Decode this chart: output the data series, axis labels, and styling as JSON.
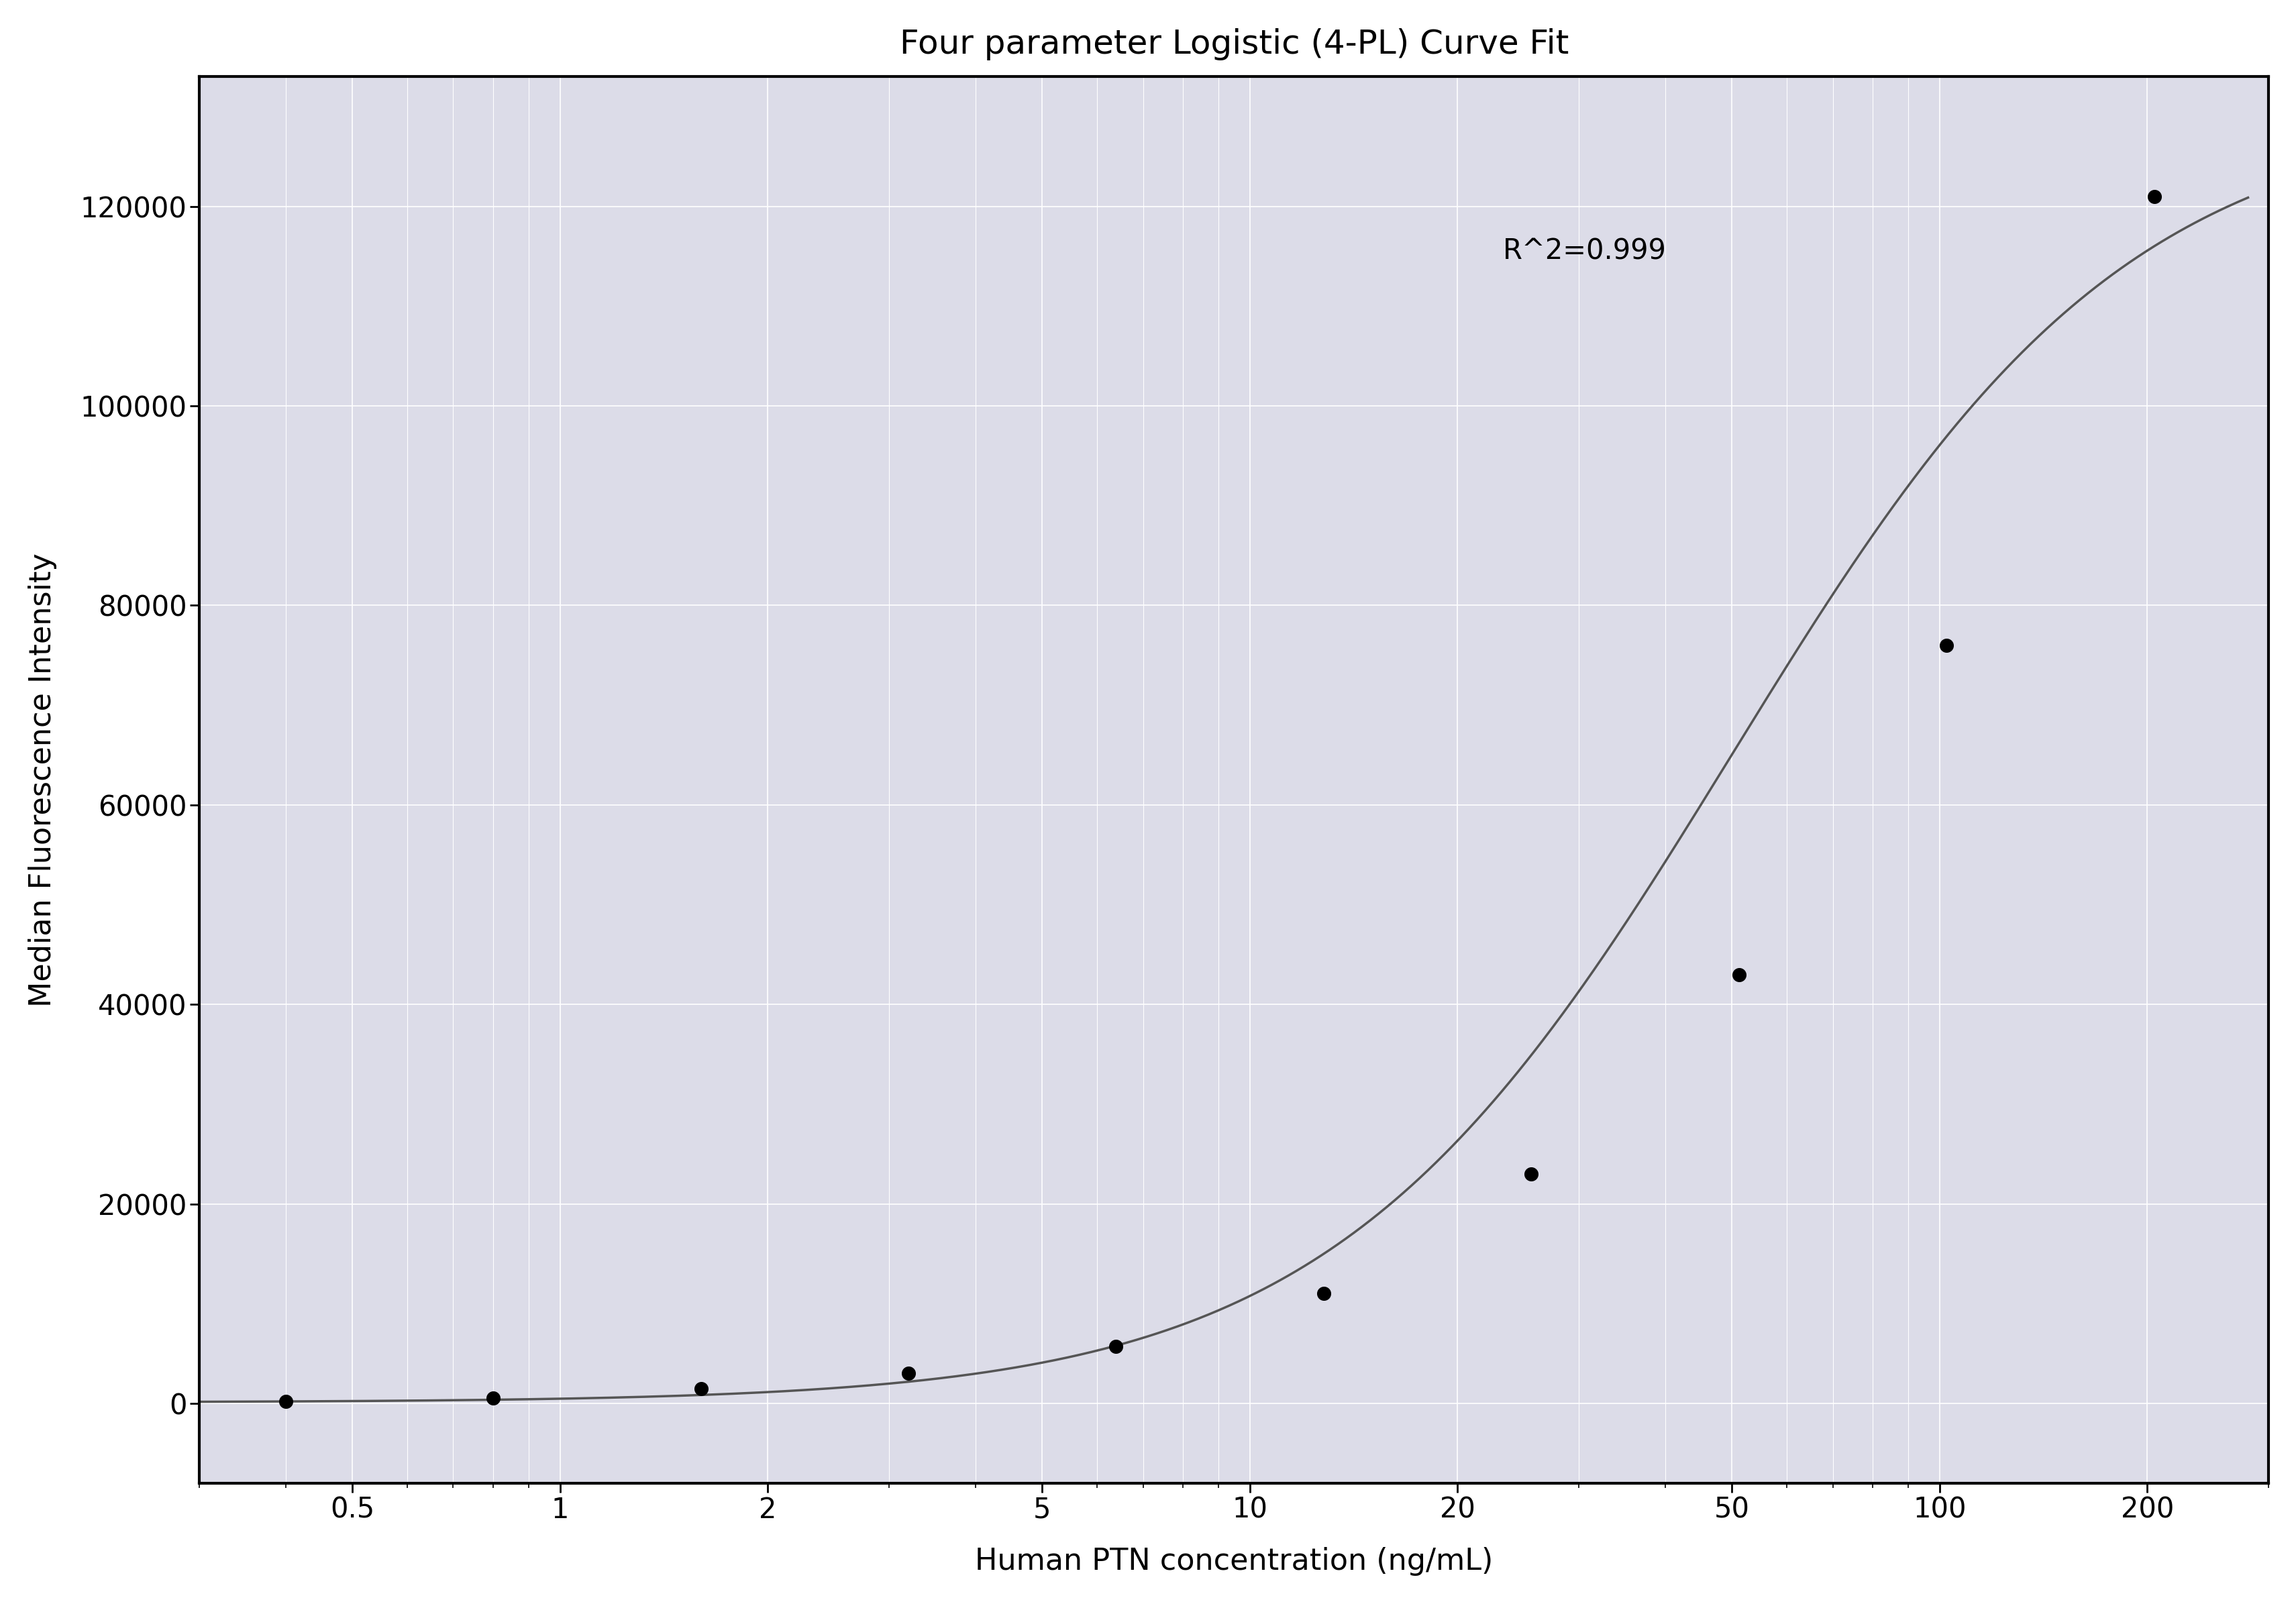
{
  "title": "Four parameter Logistic (4-PL) Curve Fit",
  "xlabel": "Human PTN concentration (ng/mL)",
  "ylabel": "Median Fluorescence Intensity",
  "r_squared_text": "R^2=0.999",
  "data_x": [
    0.4,
    0.8,
    1.6,
    3.2,
    6.4,
    12.8,
    25.6,
    51.2,
    102.4,
    204.8
  ],
  "data_y": [
    200,
    500,
    1500,
    3000,
    5700,
    11000,
    23000,
    43000,
    76000,
    121000
  ],
  "xscale": "log",
  "xticks": [
    0.5,
    1,
    2,
    5,
    10,
    20,
    50,
    100,
    200
  ],
  "xtick_labels": [
    "0.5",
    "1",
    "2",
    "5",
    "10",
    "20",
    "50",
    "100",
    "200"
  ],
  "xlim": [
    0.3,
    300
  ],
  "ylim": [
    -8000,
    133000
  ],
  "yticks": [
    0,
    20000,
    40000,
    60000,
    80000,
    100000,
    120000
  ],
  "background_color": "#ffffff",
  "plot_bg_color": "#dcdce8",
  "grid_color": "#ffffff",
  "line_color": "#555555",
  "dot_color": "#000000",
  "dot_size": 200,
  "line_width": 2.5,
  "title_fontsize": 36,
  "label_fontsize": 32,
  "tick_fontsize": 30,
  "annotation_fontsize": 30,
  "ylabel_color": "#000000",
  "title_color": "#000000",
  "xlabel_color": "#000000"
}
